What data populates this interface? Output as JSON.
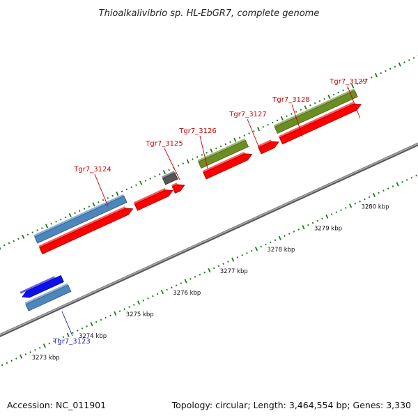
{
  "title": "Thioalkalivibrio sp. HL-EbGR7, complete genome",
  "footer": {
    "accession": "Accession: NC_011901",
    "summary": "Topology: circular; Length: 3,464,554 bp; Genes: 3,330"
  },
  "colors": {
    "backbone": "#8a8a8a",
    "tick": "#1f7a1f",
    "cds": "#ff0000",
    "steelblue": "#4d86bd",
    "blue": "#1010ee",
    "olive": "#6b8e23",
    "gray": "#555555",
    "lightgray": "#bbbbbb",
    "label_red": "#cc0000",
    "label_blue": "#1a1aaa"
  },
  "kbp_labels": [
    {
      "kbp": 3273,
      "text": "3273 kbp"
    },
    {
      "kbp": 3274,
      "text": "3274 kbp"
    },
    {
      "kbp": 3275,
      "text": "3275 kbp"
    },
    {
      "kbp": 3276,
      "text": "3276 kbp"
    },
    {
      "kbp": 3277,
      "text": "3277 kbp"
    },
    {
      "kbp": 3278,
      "text": "3278 kbp"
    },
    {
      "kbp": 3279,
      "text": "3279 kbp"
    },
    {
      "kbp": 3280,
      "text": "3280 kbp"
    }
  ],
  "gene_labels": [
    {
      "text": "Tgr7_3123",
      "color": "label_blue"
    },
    {
      "text": "Tgr7_3124",
      "color": "label_red"
    },
    {
      "text": "Tgr7_3125",
      "color": "label_red"
    },
    {
      "text": "Tgr7_3126",
      "color": "label_red"
    },
    {
      "text": "Tgr7_3127",
      "color": "label_red"
    },
    {
      "text": "Tgr7_3128",
      "color": "label_red"
    },
    {
      "text": "Tgr7_3129",
      "color": "label_red"
    }
  ]
}
